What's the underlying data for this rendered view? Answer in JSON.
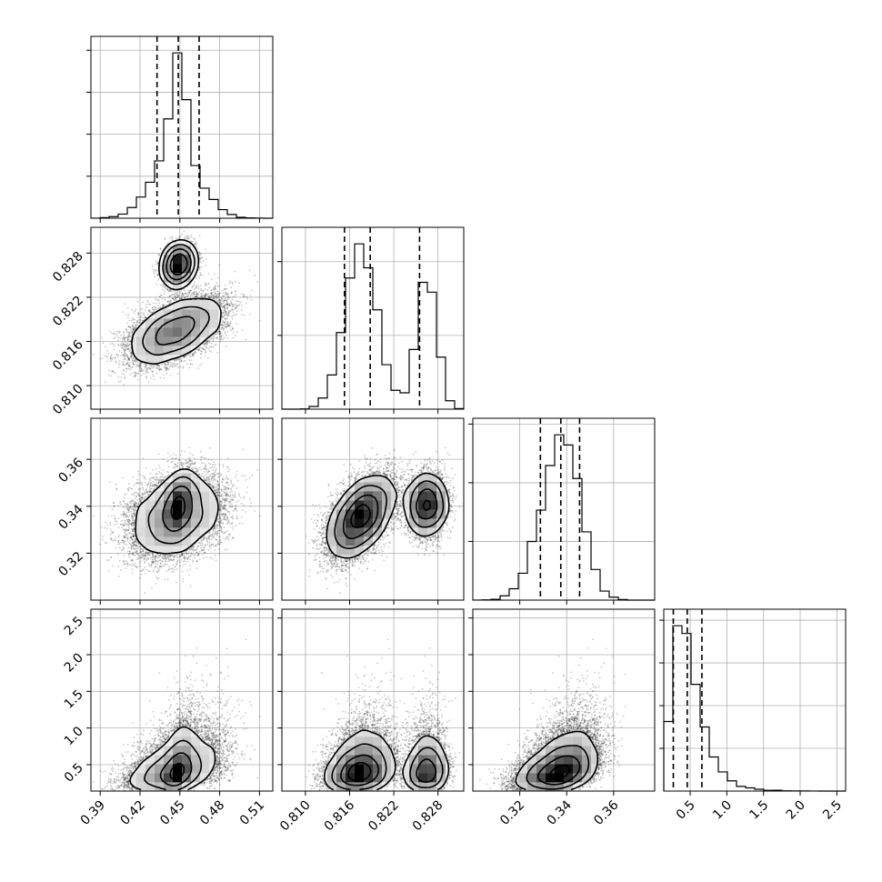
{
  "chart_data": {
    "type": "corner",
    "title": "",
    "parameters": [
      {
        "key": "p0",
        "range": [
          0.383,
          0.52
        ],
        "ticks": [
          0.39,
          0.42,
          0.45,
          0.48,
          0.51
        ],
        "tick_labels": [
          "0.39",
          "0.42",
          "0.45",
          "0.48",
          "0.51"
        ],
        "quantiles": [
          0.4328,
          0.4488,
          0.4645
        ],
        "mean": 0.449,
        "sd": 0.016
      },
      {
        "key": "p1",
        "range": [
          0.8068,
          0.8315
        ],
        "ticks": [
          0.81,
          0.816,
          0.822,
          0.828
        ],
        "tick_labels": [
          "0.810",
          "0.816",
          "0.822",
          "0.828"
        ],
        "quantiles": [
          0.8153,
          0.8188,
          0.8255
        ],
        "mixture": [
          {
            "weight": 0.66,
            "mean": 0.8175,
            "sd": 0.0022
          },
          {
            "weight": 0.34,
            "mean": 0.8265,
            "sd": 0.0013
          }
        ]
      },
      {
        "key": "p2",
        "range": [
          0.3,
          0.3775
        ],
        "ticks": [
          0.32,
          0.34,
          0.36
        ],
        "tick_labels": [
          "0.32",
          "0.34",
          "0.36"
        ],
        "quantiles": [
          0.3288,
          0.3375,
          0.3455
        ],
        "mean": 0.3375,
        "sd": 0.0085
      },
      {
        "key": "p3",
        "range": [
          0.14,
          2.62
        ],
        "ticks": [
          0.5,
          1.0,
          1.5,
          2.0,
          2.5
        ],
        "tick_labels": [
          "0.5",
          "1.0",
          "1.5",
          "2.0",
          "2.5"
        ],
        "quantiles": [
          0.27,
          0.46,
          0.66
        ],
        "lognormal": {
          "median": 0.45,
          "sigma": 0.45
        }
      }
    ],
    "bins": 20,
    "samples": 15000,
    "levels": [
      0.118,
      0.393,
      0.675,
      0.864
    ],
    "colors": {
      "ink": "#000000",
      "grid": "#b0b0b0",
      "points": "#000000"
    },
    "grid": true
  }
}
